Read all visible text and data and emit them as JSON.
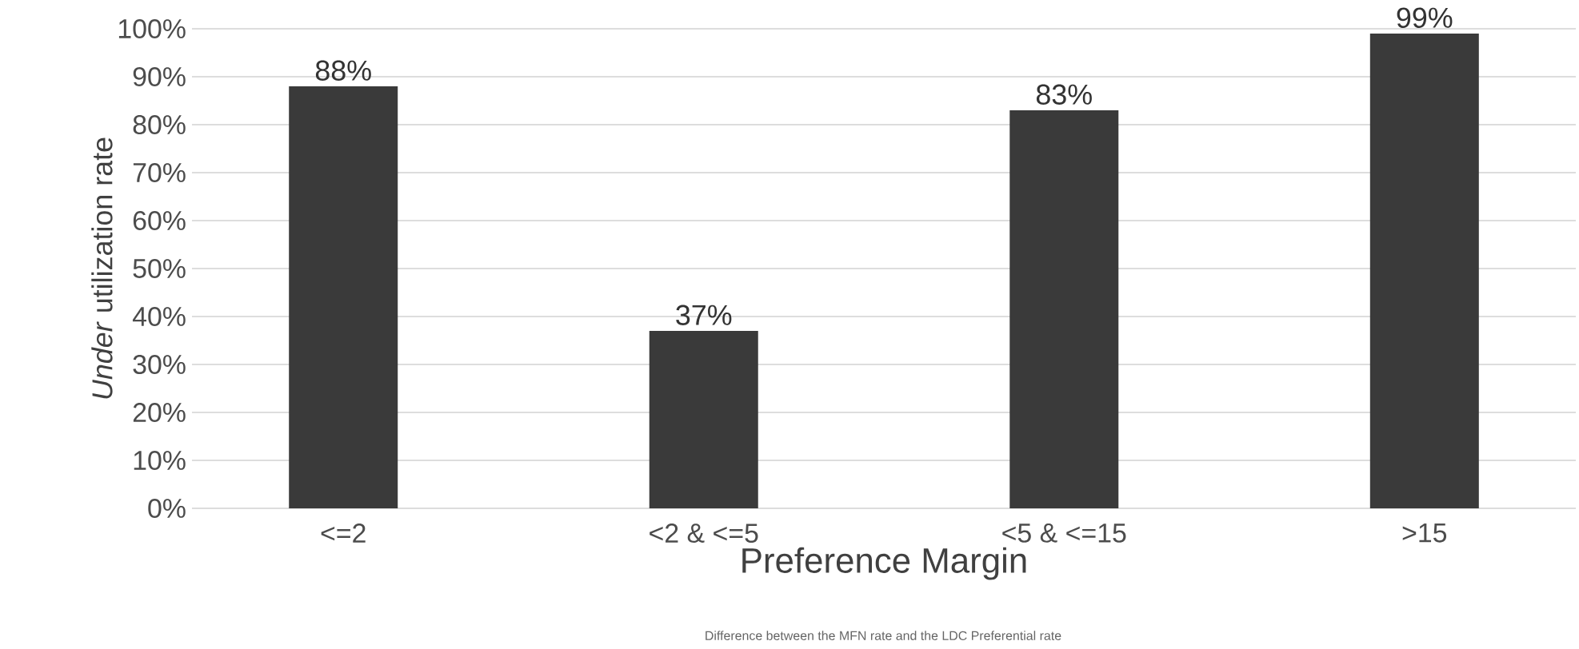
{
  "chart_data": {
    "type": "bar",
    "xlabel": "Preference Margin",
    "ylabel": "*Under* utilization rate",
    "annotations": [
      "Difference between the MFN rate and the LDC Preferential rate"
    ],
    "categories": [
      "<=2",
      "<2 & <=5",
      "<5 & <=15",
      ">15"
    ],
    "values": [
      88,
      37,
      83,
      99
    ],
    "value_labels": [
      "88%",
      "37%",
      "83%",
      "99%"
    ],
    "color": "#3a3a3a",
    "ylim": [
      0,
      100
    ],
    "yticks": [
      {
        "value": 0,
        "label": "0%"
      },
      {
        "value": 10,
        "label": "10%"
      },
      {
        "value": 20,
        "label": "20%"
      },
      {
        "value": 30,
        "label": "30%"
      },
      {
        "value": 40,
        "label": "40%"
      },
      {
        "value": 50,
        "label": "50%"
      },
      {
        "value": 60,
        "label": "60%"
      },
      {
        "value": 70,
        "label": "70%"
      },
      {
        "value": 80,
        "label": "80%"
      },
      {
        "value": 90,
        "label": "90%"
      },
      {
        "value": 100,
        "label": "100%"
      }
    ],
    "grid": "y"
  }
}
